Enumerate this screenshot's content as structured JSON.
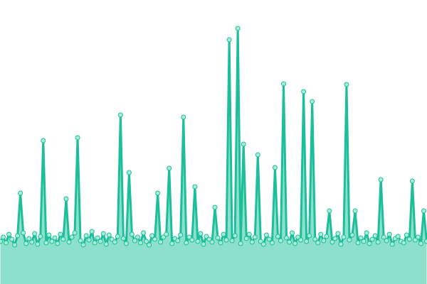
{
  "chart_data": {
    "type": "area",
    "color": "#1dbf9a",
    "fill": "#8de0cb",
    "marker_fill": "#a9ecd9",
    "markers": true,
    "values": [
      60,
      66,
      58,
      70,
      63,
      55,
      68,
      128,
      72,
      57,
      64,
      59,
      71,
      56,
      67,
      202,
      58,
      69,
      60,
      65,
      57,
      70,
      63,
      120,
      59,
      66,
      72,
      206,
      61,
      55,
      68,
      62,
      74,
      58,
      65,
      60,
      71,
      56,
      69,
      63,
      59,
      67,
      238,
      64,
      57,
      157,
      70,
      61,
      66,
      58,
      72,
      60,
      55,
      68,
      63,
      128,
      59,
      66,
      70,
      163,
      57,
      64,
      61,
      69,
      235,
      58,
      66,
      62,
      137,
      60,
      71,
      56,
      67,
      63,
      59,
      108,
      65,
      58,
      70,
      62,
      344,
      61,
      68,
      360,
      57,
      197,
      64,
      70,
      59,
      66,
      182,
      60,
      56,
      69,
      63,
      58,
      164,
      67,
      61,
      282,
      65,
      59,
      72,
      57,
      66,
      62,
      271,
      60,
      68,
      257,
      63,
      58,
      70,
      61,
      67,
      103,
      59,
      64,
      71,
      56,
      66,
      281,
      62,
      69,
      103,
      58,
      65,
      60,
      72,
      57,
      63,
      68,
      59,
      147,
      66,
      61,
      70,
      56,
      64,
      67,
      60,
      58,
      69,
      63,
      145,
      62,
      66,
      57,
      103,
      60
    ]
  }
}
